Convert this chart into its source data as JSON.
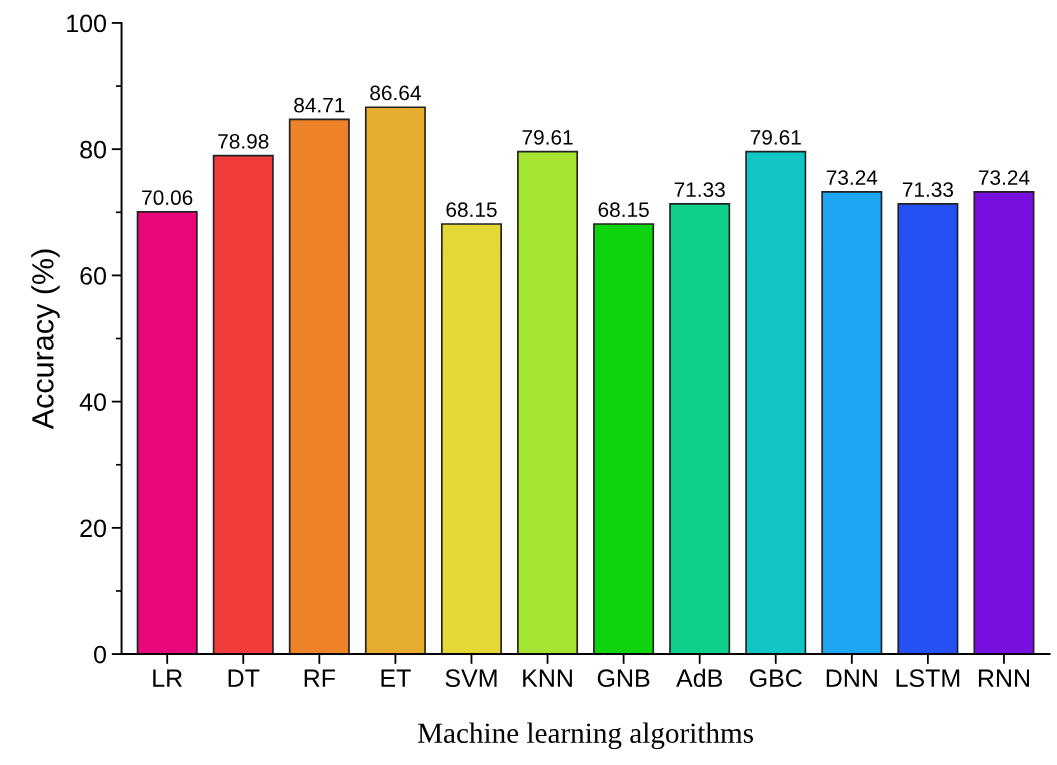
{
  "chart_data": {
    "type": "bar",
    "xlabel": "Machine learning algorithms",
    "ylabel": "Accuracy (%)",
    "categories": [
      "LR",
      "DT",
      "RF",
      "ET",
      "SVM",
      "KNN",
      "GNB",
      "AdB",
      "GBC",
      "DNN",
      "LSTM",
      "RNN"
    ],
    "values": [
      70.06,
      78.98,
      84.71,
      86.64,
      68.15,
      79.61,
      68.15,
      71.33,
      79.61,
      73.24,
      71.33,
      73.24
    ],
    "colors": [
      "#e8087a",
      "#f23c3c",
      "#ee8228",
      "#e6ac30",
      "#e3d836",
      "#a6e432",
      "#0ed40e",
      "#0ed08a",
      "#12c6c6",
      "#1ea6f4",
      "#2450f4",
      "#7a10e0"
    ],
    "ylim": [
      0,
      100
    ],
    "yticks": [
      0,
      {
        "value": 10,
        "label": null
      },
      20,
      {
        "value": 30,
        "label": null
      },
      40,
      {
        "value": 50,
        "label": null
      },
      60,
      {
        "value": 70,
        "label": null
      },
      80,
      {
        "value": 90,
        "label": null
      },
      100
    ],
    "data_labels": true,
    "grid": false,
    "legend": false
  }
}
